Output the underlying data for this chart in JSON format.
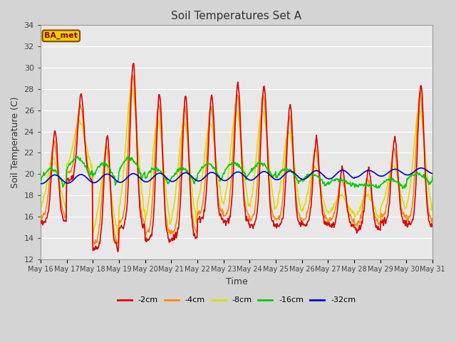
{
  "title": "Soil Temperatures Set A",
  "xlabel": "Time",
  "ylabel": "Soil Temperature (C)",
  "ylim": [
    12,
    34
  ],
  "yticks": [
    12,
    14,
    16,
    18,
    20,
    22,
    24,
    26,
    28,
    30,
    32,
    34
  ],
  "annotation": "BA_met",
  "series": {
    "-2cm": {
      "color": "#dd0000",
      "lw": 1.2
    },
    "-4cm": {
      "color": "#ff8800",
      "lw": 1.2
    },
    "-8cm": {
      "color": "#dddd00",
      "lw": 1.2
    },
    "-16cm": {
      "color": "#00cc00",
      "lw": 1.2
    },
    "-32cm": {
      "color": "#0000cc",
      "lw": 1.2
    }
  },
  "start_day": 16,
  "end_day": 31,
  "points_per_day": 48
}
